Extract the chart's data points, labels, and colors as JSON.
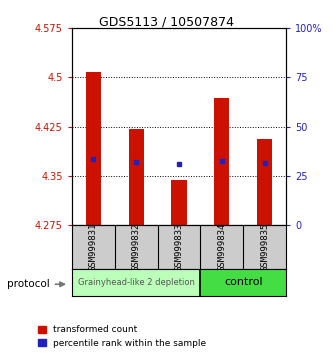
{
  "title": "GDS5113 / 10507874",
  "samples": [
    "GSM999831",
    "GSM999832",
    "GSM999833",
    "GSM999834",
    "GSM999835"
  ],
  "bar_bottoms": [
    4.275,
    4.275,
    4.275,
    4.275,
    4.275
  ],
  "bar_tops": [
    4.508,
    4.421,
    4.343,
    4.468,
    4.406
  ],
  "blue_values": [
    4.376,
    4.371,
    4.368,
    4.373,
    4.37
  ],
  "ylim_left": [
    4.275,
    4.575
  ],
  "ylim_right": [
    0,
    100
  ],
  "yticks_left": [
    4.275,
    4.35,
    4.425,
    4.5,
    4.575
  ],
  "yticks_right": [
    0,
    25,
    50,
    75,
    100
  ],
  "ytick_labels_left": [
    "4.275",
    "4.35",
    "4.425",
    "4.5",
    "4.575"
  ],
  "ytick_labels_right": [
    "0",
    "25",
    "50",
    "75",
    "100%"
  ],
  "bar_color": "#cc1100",
  "blue_color": "#2222bb",
  "group1_samples": [
    0,
    1,
    2
  ],
  "group2_samples": [
    3,
    4
  ],
  "group1_label": "Grainyhead-like 2 depletion",
  "group2_label": "control",
  "group1_color": "#bbffbb",
  "group2_color": "#44dd44",
  "protocol_label": "protocol",
  "legend_red_label": "transformed count",
  "legend_blue_label": "percentile rank within the sample",
  "plot_bg": "#ffffff",
  "tick_area_bg": "#cccccc",
  "bar_width": 0.35,
  "title_fontsize": 9,
  "tick_fontsize": 7,
  "sample_fontsize": 6.5,
  "group_fontsize1": 6,
  "group_fontsize2": 8,
  "legend_fontsize": 6.5
}
